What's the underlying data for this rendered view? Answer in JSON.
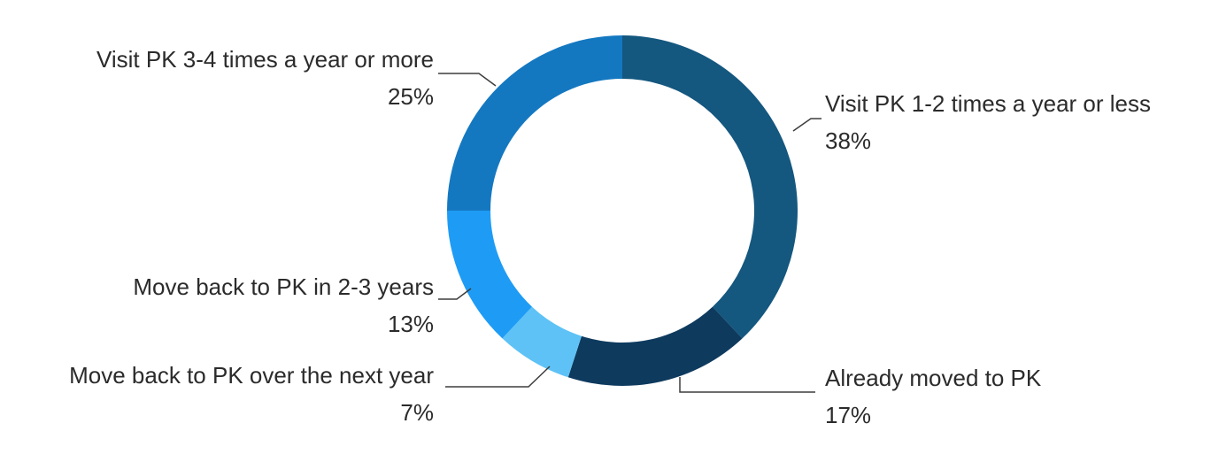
{
  "chart_data": {
    "type": "pie",
    "subtype": "donut",
    "title": "",
    "legend": "none",
    "start_angle_deg": 0,
    "direction": "clockwise",
    "donut_hole_ratio": 0.75,
    "segments": [
      {
        "label": "Visit PK 1-2 times a year or less",
        "pct_label": "38%",
        "value": 38,
        "color": "#14577F"
      },
      {
        "label": "Already moved to PK",
        "pct_label": "17%",
        "value": 17,
        "color": "#0E3A5E"
      },
      {
        "label": "Move back to PK over the next year",
        "pct_label": "7%",
        "value": 7,
        "color": "#5EC2F6"
      },
      {
        "label": "Move back to PK in 2-3 years",
        "pct_label": "13%",
        "value": 13,
        "color": "#1E9CF5"
      },
      {
        "label": "Visit PK 3-4 times a year or more",
        "pct_label": "25%",
        "value": 25,
        "color": "#1478C1"
      }
    ]
  }
}
